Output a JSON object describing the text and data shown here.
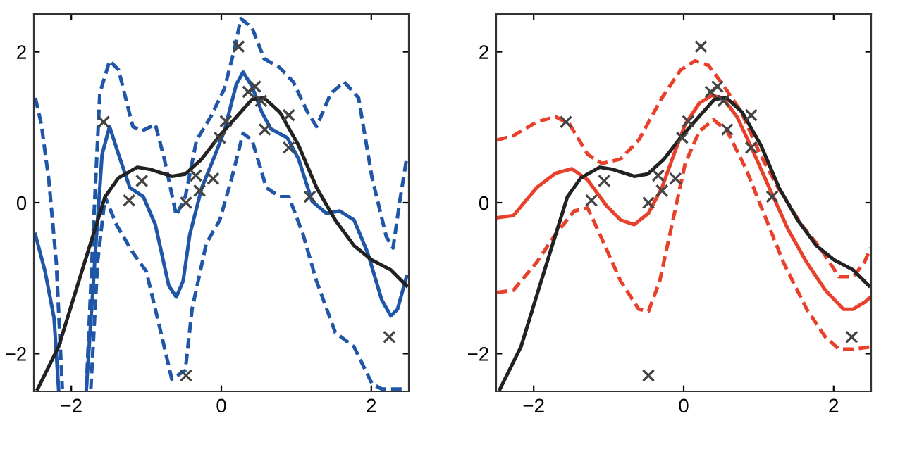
{
  "chart_data": [
    {
      "type": "line",
      "xlim": [
        -2.5,
        2.5
      ],
      "ylim": [
        -2.5,
        2.5
      ],
      "xticks": [
        -2,
        0,
        2
      ],
      "yticks": [
        -2,
        0,
        2
      ],
      "grid": false,
      "legend": false,
      "series": [
        {
          "type": "line",
          "line_style": "dashed",
          "color": "#1f56a8",
          "x": [
            -2.48,
            -2.4,
            -2.3,
            -2.2,
            -2.12,
            -1.95,
            -1.8,
            -1.71,
            -1.62,
            -1.49,
            -1.37,
            -1.18,
            -1.06,
            -0.88,
            -0.76,
            -0.6,
            -0.48,
            -0.33,
            -0.14,
            0.04,
            0.17,
            0.26,
            0.41,
            0.57,
            0.78,
            0.96,
            1.15,
            1.27,
            1.46,
            1.64,
            1.83,
            2.01,
            2.2,
            2.29,
            2.38,
            2.47
          ],
          "values": [
            1.39,
            1.04,
            0.3,
            -0.8,
            -2.47,
            null,
            -2.47,
            -0.42,
            1.45,
            1.88,
            1.76,
            1.01,
            0.95,
            1.04,
            0.58,
            -0.17,
            0.08,
            0.83,
            1.14,
            1.51,
            2.01,
            2.44,
            2.32,
            1.91,
            1.79,
            1.6,
            1.2,
            1.01,
            1.45,
            1.6,
            1.39,
            0.33,
            -0.45,
            -0.6,
            0.02,
            0.58
          ]
        },
        {
          "type": "line",
          "line_style": "dashed",
          "color": "#1f56a8",
          "x": [
            -1.74,
            -1.65,
            -1.55,
            -1.4,
            -1.18,
            -1.0,
            -0.82,
            -0.66,
            -0.48,
            -0.39,
            -0.2,
            -0.02,
            0.14,
            0.29,
            0.41,
            0.6,
            0.78,
            0.9,
            1.09,
            1.27,
            1.52,
            1.77,
            2.01,
            2.14,
            2.47
          ],
          "values": [
            -2.47,
            -0.79,
            0.08,
            -0.29,
            -0.66,
            -0.91,
            -1.66,
            -2.34,
            -2.22,
            -1.41,
            -0.54,
            -0.23,
            0.33,
            0.92,
            0.83,
            0.2,
            0.08,
            0.08,
            -0.42,
            -1.04,
            -1.72,
            -1.91,
            -2.4,
            -2.47,
            -2.47
          ]
        },
        {
          "type": "line",
          "line_style": "solid",
          "color": "#1f56a8",
          "x": [
            -2.48,
            -2.35,
            -2.23,
            -2.17,
            -2.0,
            -1.8,
            -1.68,
            -1.59,
            -1.49,
            -1.37,
            -1.22,
            -1.04,
            -0.88,
            -0.7,
            -0.6,
            -0.51,
            -0.42,
            -0.26,
            -0.08,
            0.04,
            0.2,
            0.29,
            0.41,
            0.54,
            0.66,
            0.88,
            1.03,
            1.21,
            1.4,
            1.58,
            1.77,
            1.95,
            2.14,
            2.26,
            2.35,
            2.47
          ],
          "values": [
            -0.42,
            -0.91,
            -1.53,
            -2.47,
            null,
            -2.47,
            -0.66,
            0.64,
            1.01,
            0.64,
            0.2,
            0.08,
            -0.29,
            -1.1,
            -1.25,
            -1.04,
            -0.42,
            0.2,
            0.64,
            0.95,
            1.57,
            1.73,
            1.54,
            1.2,
            0.98,
            0.86,
            0.58,
            0.02,
            -0.14,
            -0.11,
            -0.23,
            -0.66,
            -1.29,
            -1.5,
            -1.41,
            -0.98
          ]
        },
        {
          "type": "line",
          "line_style": "solid",
          "color": "#222222",
          "x": [
            -2.45,
            -2.17,
            -1.86,
            -1.55,
            -1.37,
            -1.12,
            -0.94,
            -0.66,
            -0.48,
            -0.26,
            -0.02,
            0.23,
            0.41,
            0.57,
            0.78,
            1.03,
            1.27,
            1.52,
            1.77,
            2.01,
            2.26,
            2.47
          ],
          "values": [
            -2.47,
            -1.91,
            -0.91,
            0.08,
            0.33,
            0.47,
            0.44,
            0.35,
            0.38,
            0.58,
            0.89,
            1.17,
            1.37,
            1.39,
            1.2,
            0.76,
            0.2,
            -0.23,
            -0.57,
            -0.76,
            -0.89,
            -1.1
          ]
        },
        {
          "type": "scatter",
          "marker": "cross",
          "color": "#444444",
          "x": [
            -1.57,
            -1.23,
            -1.06,
            -0.47,
            -0.47,
            -0.34,
            -0.29,
            -0.11,
            -0.02,
            0.06,
            0.23,
            0.36,
            0.45,
            0.53,
            0.58,
            0.9,
            0.9,
            1.18,
            2.24
          ],
          "values": [
            1.07,
            0.03,
            0.29,
            0.0,
            -2.29,
            0.36,
            0.16,
            0.32,
            0.86,
            1.08,
            2.07,
            1.47,
            1.54,
            1.35,
            0.97,
            1.16,
            0.73,
            0.08,
            -1.78
          ]
        }
      ]
    },
    {
      "type": "line",
      "xlim": [
        -2.5,
        2.5
      ],
      "ylim": [
        -2.5,
        2.5
      ],
      "xticks": [
        -2,
        0,
        2
      ],
      "yticks": [
        -2,
        0,
        2
      ],
      "grid": false,
      "legend": false,
      "series": [
        {
          "type": "line",
          "line_style": "dashed",
          "color": "#e8402a",
          "x": [
            -2.49,
            -2.27,
            -1.96,
            -1.71,
            -1.52,
            -1.28,
            -1.09,
            -0.84,
            -0.6,
            -0.29,
            -0.04,
            0.15,
            0.33,
            0.52,
            0.77,
            1.02,
            1.26,
            1.57,
            1.82,
            2.07,
            2.26,
            2.41,
            2.49
          ],
          "values": [
            0.83,
            0.89,
            1.07,
            1.14,
            1.04,
            0.64,
            0.52,
            0.58,
            0.83,
            1.39,
            1.76,
            1.88,
            1.82,
            1.57,
            1.2,
            0.64,
            0.2,
            -0.29,
            -0.6,
            -0.98,
            -0.98,
            -0.79,
            -0.6
          ]
        },
        {
          "type": "line",
          "line_style": "dashed",
          "color": "#e8402a",
          "x": [
            -2.49,
            -2.27,
            -1.96,
            -1.71,
            -1.46,
            -1.28,
            -1.09,
            -0.84,
            -0.6,
            -0.47,
            -0.32,
            -0.13,
            0.02,
            0.21,
            0.4,
            0.58,
            0.83,
            1.08,
            1.33,
            1.64,
            1.89,
            2.07,
            2.26,
            2.49
          ],
          "values": [
            -1.19,
            -1.16,
            -0.79,
            -0.42,
            -0.11,
            -0.07,
            -0.48,
            -1.04,
            -1.41,
            -1.44,
            -1.04,
            -0.17,
            0.52,
            0.95,
            1.1,
            0.95,
            0.45,
            -0.17,
            -0.79,
            -1.41,
            -1.78,
            -1.94,
            -1.94,
            -1.91
          ]
        },
        {
          "type": "line",
          "line_style": "solid",
          "color": "#e8402a",
          "x": [
            -2.49,
            -2.27,
            -1.96,
            -1.71,
            -1.49,
            -1.28,
            -1.03,
            -0.84,
            -0.66,
            -0.47,
            -0.29,
            -0.13,
            0.02,
            0.21,
            0.37,
            0.52,
            0.71,
            0.89,
            1.14,
            1.39,
            1.64,
            1.89,
            2.13,
            2.26,
            2.41,
            2.49
          ],
          "values": [
            -0.2,
            -0.17,
            0.2,
            0.39,
            0.45,
            0.3,
            -0.04,
            -0.23,
            -0.29,
            -0.14,
            0.2,
            0.64,
            1.04,
            1.32,
            1.42,
            1.39,
            1.14,
            0.76,
            0.2,
            -0.35,
            -0.79,
            -1.16,
            -1.41,
            -1.41,
            -1.32,
            -1.25
          ]
        },
        {
          "type": "line",
          "line_style": "solid",
          "color": "#222222",
          "x": [
            -2.45,
            -2.17,
            -1.86,
            -1.55,
            -1.37,
            -1.12,
            -0.94,
            -0.66,
            -0.48,
            -0.26,
            -0.02,
            0.23,
            0.41,
            0.57,
            0.78,
            1.03,
            1.27,
            1.52,
            1.77,
            2.01,
            2.26,
            2.47
          ],
          "values": [
            -2.47,
            -1.91,
            -0.91,
            0.08,
            0.33,
            0.47,
            0.44,
            0.35,
            0.38,
            0.58,
            0.89,
            1.17,
            1.37,
            1.39,
            1.2,
            0.76,
            0.2,
            -0.23,
            -0.57,
            -0.76,
            -0.89,
            -1.1
          ]
        },
        {
          "type": "scatter",
          "marker": "cross",
          "color": "#444444",
          "x": [
            -1.57,
            -1.23,
            -1.06,
            -0.47,
            -0.47,
            -0.34,
            -0.29,
            -0.11,
            -0.02,
            0.06,
            0.23,
            0.36,
            0.45,
            0.53,
            0.58,
            0.9,
            0.9,
            1.18,
            2.24
          ],
          "values": [
            1.07,
            0.03,
            0.29,
            0.0,
            -2.29,
            0.36,
            0.16,
            0.32,
            0.86,
            1.08,
            2.07,
            1.47,
            1.54,
            1.35,
            0.97,
            1.16,
            0.73,
            0.08,
            -1.78
          ]
        }
      ]
    }
  ]
}
